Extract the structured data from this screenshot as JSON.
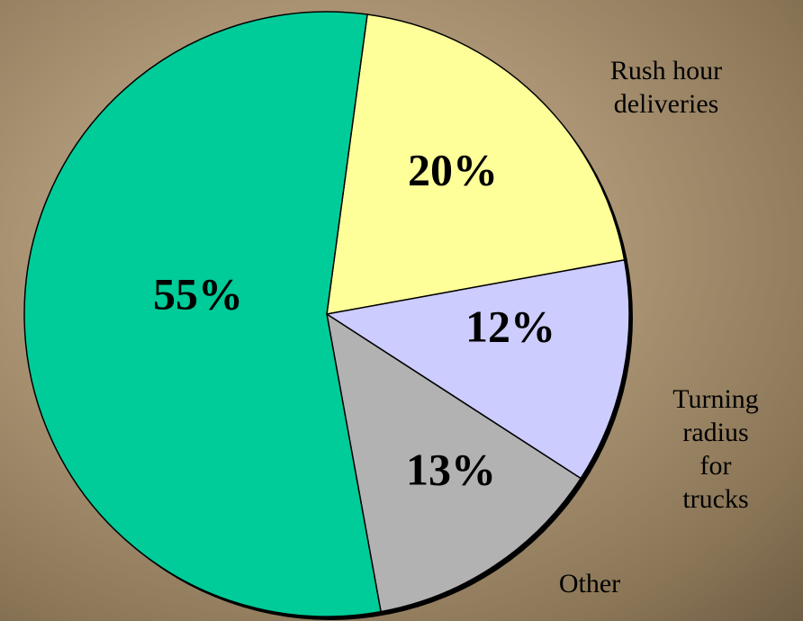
{
  "chart_data": {
    "type": "pie",
    "categories": [
      "Rush hour\ndeliveries",
      "Turning\nradius\nfor trucks",
      "Other",
      null
    ],
    "values": [
      20,
      12,
      13,
      55
    ],
    "value_labels": [
      "20%",
      "12%",
      "13%",
      "55%"
    ],
    "colors": [
      "#ffff99",
      "#ccccff",
      "#b2b2b2",
      "#00cc99"
    ]
  }
}
